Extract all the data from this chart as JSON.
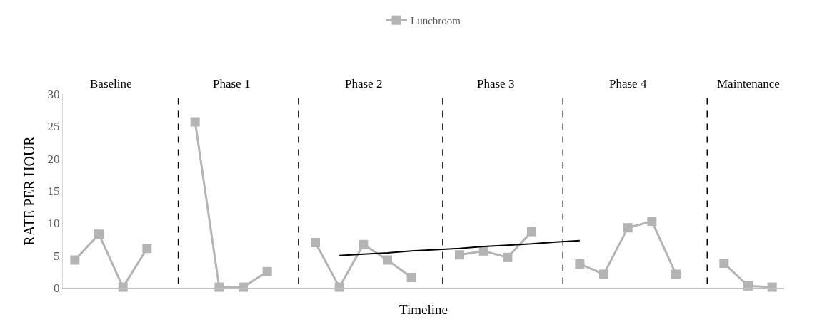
{
  "chart_data": {
    "type": "line",
    "xlabel": "Timeline",
    "ylabel": "RATE PER HOUR",
    "categories": [
      null,
      null,
      null,
      null,
      null,
      null,
      null,
      null,
      null,
      null,
      null,
      null,
      null,
      null,
      null,
      null,
      null,
      null,
      null,
      null,
      null,
      null,
      null,
      null,
      null,
      null,
      null,
      null,
      null,
      null
    ],
    "series": [
      {
        "name": "Lunchroom",
        "color": "#b4b4b4",
        "marker": "square",
        "values": [
          4.3,
          8.3,
          0.1,
          6.1,
          null,
          25.7,
          0.1,
          0.1,
          2.5,
          null,
          7.0,
          0.1,
          6.7,
          4.3,
          1.6,
          null,
          5.1,
          5.7,
          4.7,
          8.7,
          null,
          3.7,
          2.1,
          9.3,
          10.3,
          2.1,
          null,
          3.8,
          0.3,
          0.1
        ]
      },
      {
        "type": "line",
        "color": "#000000",
        "marker": "none",
        "values": [
          null,
          null,
          null,
          null,
          null,
          null,
          null,
          null,
          null,
          null,
          null,
          5.0,
          5.2,
          5.4,
          5.7,
          5.9,
          6.1,
          6.4,
          6.6,
          6.8,
          7.1,
          7.3,
          null,
          null,
          null,
          null,
          null,
          null,
          null,
          null
        ]
      }
    ],
    "ylim": [
      0,
      30
    ],
    "yticks": [
      0,
      5,
      10,
      15,
      20,
      25,
      30
    ],
    "grid": false,
    "legend": "top",
    "annotations": [
      "Baseline",
      "Phase 1",
      "Phase 2",
      "Phase 3",
      "Phase 4",
      "Maintenance"
    ]
  }
}
